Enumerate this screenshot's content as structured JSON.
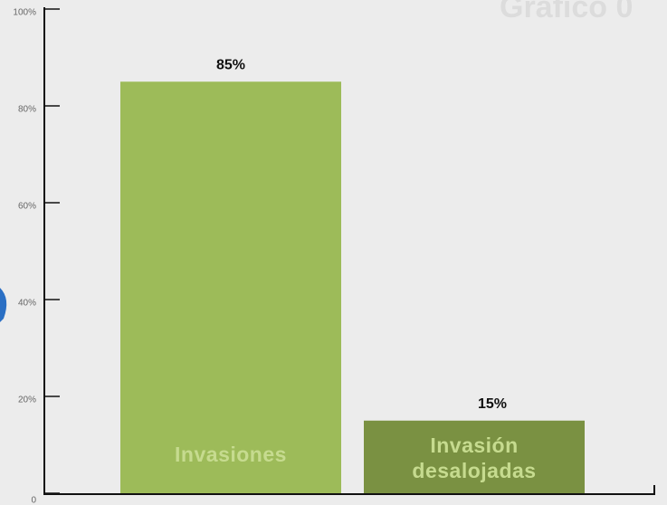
{
  "chart_data": {
    "type": "bar",
    "title": "Grafico 0",
    "categories": [
      "Invasiones",
      "Invasión desalojadas"
    ],
    "values": [
      85,
      15
    ],
    "value_labels": [
      "85%",
      "15%"
    ],
    "colors": [
      "#9dbb59",
      "#7a9142"
    ],
    "ylim": [
      0,
      100
    ],
    "yticks": [
      0,
      {
        "value": 20,
        "label": "20%"
      },
      {
        "value": 40,
        "label": "40%"
      },
      {
        "value": 60,
        "label": "60%"
      },
      {
        "value": 80,
        "label": "80%"
      },
      {
        "value": 100,
        "label": "100%"
      }
    ]
  }
}
